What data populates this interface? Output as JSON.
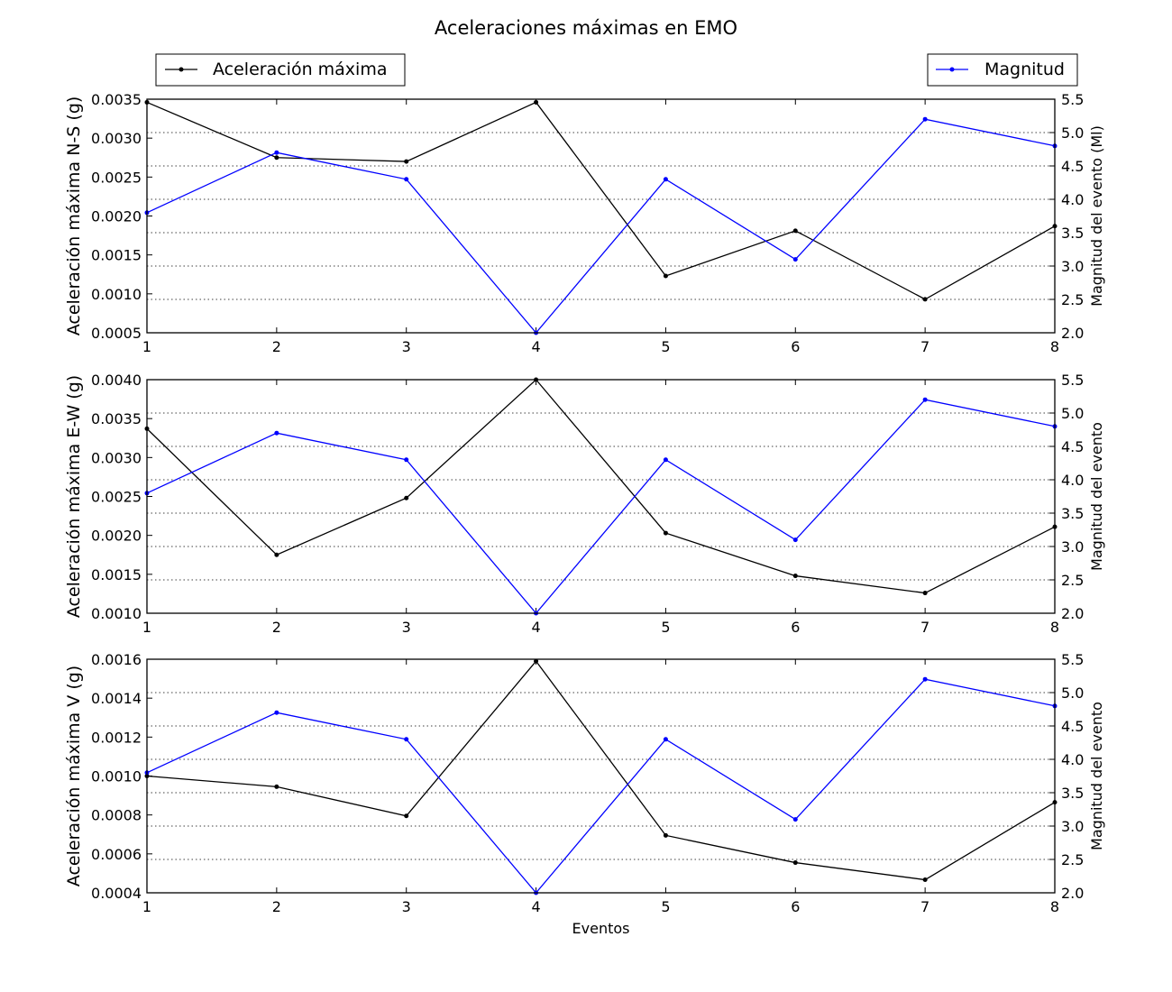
{
  "title": "Aceleraciones máximas en EMO",
  "xlabel": "Eventos",
  "legend": {
    "left_label": "Aceleración máxima",
    "right_label": "Magnitud"
  },
  "colors": {
    "acceleration": "#000000",
    "magnitude": "#0000ff",
    "grid": "#000000",
    "background": "#ffffff"
  },
  "chart_data": [
    {
      "type": "line",
      "x": [
        1,
        2,
        3,
        4,
        5,
        6,
        7,
        8
      ],
      "xlim": [
        1,
        8
      ],
      "x_ticks": [
        1,
        2,
        3,
        4,
        5,
        6,
        7,
        8
      ],
      "ylabel": "Aceleración máxima N-S (g)",
      "ylim": [
        0.0005,
        0.0035
      ],
      "y_ticks": [
        "0.0005",
        "0.0010",
        "0.0015",
        "0.0020",
        "0.0025",
        "0.0030",
        "0.0035"
      ],
      "y2label": "Magnitud del evento (Ml)",
      "y2lim": [
        2.0,
        5.5
      ],
      "y2_ticks": [
        "2.0",
        "2.5",
        "3.0",
        "3.5",
        "4.0",
        "4.5",
        "5.0",
        "5.5"
      ],
      "grid": "dotted",
      "series": [
        {
          "name": "Aceleración máxima",
          "axis": "left",
          "color": "#000000",
          "values": [
            0.00346,
            0.00275,
            0.0027,
            0.00346,
            0.00123,
            0.00181,
            0.00093,
            0.00187
          ]
        },
        {
          "name": "Magnitud",
          "axis": "right",
          "color": "#0000ff",
          "values": [
            3.8,
            4.7,
            4.3,
            2.0,
            4.3,
            3.1,
            5.2,
            4.8
          ]
        }
      ]
    },
    {
      "type": "line",
      "x": [
        1,
        2,
        3,
        4,
        5,
        6,
        7,
        8
      ],
      "xlim": [
        1,
        8
      ],
      "x_ticks": [
        1,
        2,
        3,
        4,
        5,
        6,
        7,
        8
      ],
      "ylabel": "Aceleración máxima E-W (g)",
      "ylim": [
        0.001,
        0.004
      ],
      "y_ticks": [
        "0.0010",
        "0.0015",
        "0.0020",
        "0.0025",
        "0.0030",
        "0.0035",
        "0.0040"
      ],
      "y2label": "Magnitud del evento",
      "y2lim": [
        2.0,
        5.5
      ],
      "y2_ticks": [
        "2.0",
        "2.5",
        "3.0",
        "3.5",
        "4.0",
        "4.5",
        "5.0",
        "5.5"
      ],
      "grid": "dotted",
      "series": [
        {
          "name": "Aceleración máxima",
          "axis": "left",
          "color": "#000000",
          "values": [
            0.00337,
            0.00175,
            0.00248,
            0.004,
            0.00203,
            0.00148,
            0.00126,
            0.00211
          ]
        },
        {
          "name": "Magnitud",
          "axis": "right",
          "color": "#0000ff",
          "values": [
            3.8,
            4.7,
            4.3,
            2.0,
            4.3,
            3.1,
            5.2,
            4.8
          ]
        }
      ]
    },
    {
      "type": "line",
      "x": [
        1,
        2,
        3,
        4,
        5,
        6,
        7,
        8
      ],
      "xlim": [
        1,
        8
      ],
      "x_ticks": [
        1,
        2,
        3,
        4,
        5,
        6,
        7,
        8
      ],
      "xlabel": "Eventos",
      "ylabel": "Aceleración máxima V (g)",
      "ylim": [
        0.0004,
        0.0016
      ],
      "y_ticks": [
        "0.0004",
        "0.0006",
        "0.0008",
        "0.0010",
        "0.0012",
        "0.0014",
        "0.0016"
      ],
      "y2label": "Magnitud del evento",
      "y2lim": [
        2.0,
        5.5
      ],
      "y2_ticks": [
        "2.0",
        "2.5",
        "3.0",
        "3.5",
        "4.0",
        "4.5",
        "5.0",
        "5.5"
      ],
      "grid": "dotted",
      "series": [
        {
          "name": "Aceleración máxima",
          "axis": "left",
          "color": "#000000",
          "values": [
            0.001,
            0.000945,
            0.000795,
            0.00159,
            0.000695,
            0.000555,
            0.000467,
            0.000865
          ]
        },
        {
          "name": "Magnitud",
          "axis": "right",
          "color": "#0000ff",
          "values": [
            3.8,
            4.7,
            4.3,
            2.0,
            4.3,
            3.1,
            5.2,
            4.8
          ]
        }
      ]
    }
  ]
}
